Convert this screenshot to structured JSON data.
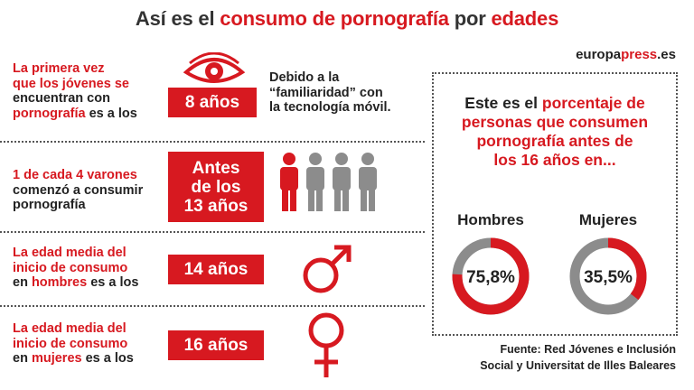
{
  "title": {
    "part1": "Así es el ",
    "part2": "consumo de pornografía",
    "part3": " por ",
    "part4": "edades"
  },
  "brand": {
    "part1": "europa",
    "part2": "press",
    "part3": ".es"
  },
  "rows": [
    {
      "line1_red": "La ",
      "line1": "primera vez",
      "line2": "que los jóvenes se",
      "line3": "encuentran con",
      "line4_red": "pornografía",
      "line4": " es a los",
      "box": "8 años",
      "note1": "Debido a la",
      "note2": "“familiaridad” con",
      "note3": "la tecnología móvil."
    },
    {
      "line1_red": "1 de cada 4 varones",
      "line2": "comenzó a consumir",
      "line3": "pornografía",
      "box1": "Antes",
      "box2": "de los",
      "box3": "13 años"
    },
    {
      "line1_red": "La ",
      "line1": "edad media del",
      "line2": "inicio de consumo",
      "line3_pre": "en ",
      "line3_red": "hombres",
      "line3": " es a los",
      "box": "14 años"
    },
    {
      "line1_red": "La ",
      "line1": "edad media del",
      "line2": "inicio de consumo",
      "line3_pre": "en ",
      "line3_red": "mujeres",
      "line3": " es a los",
      "box": "16 años"
    }
  ],
  "panel": {
    "l1a": "Este es el ",
    "l1b": "porcentaje de",
    "l2": "personas que consumen",
    "l3": "pornografía antes de",
    "l4": "los 16 años en..."
  },
  "chart_data": {
    "type": "pie",
    "categories": [
      "Hombres",
      "Mujeres"
    ],
    "values": [
      75.8,
      35.5
    ],
    "labels": [
      "75,8%",
      "35,5%"
    ],
    "colors": {
      "filled": "#d71920",
      "empty": "#8c8c8c"
    }
  },
  "source": {
    "line1": "Fuente: Red Jóvenes e Inclusión",
    "line2": "Social y Universitat de Illes Baleares"
  },
  "colors": {
    "accent": "#d71920",
    "gray": "#8c8c8c"
  }
}
